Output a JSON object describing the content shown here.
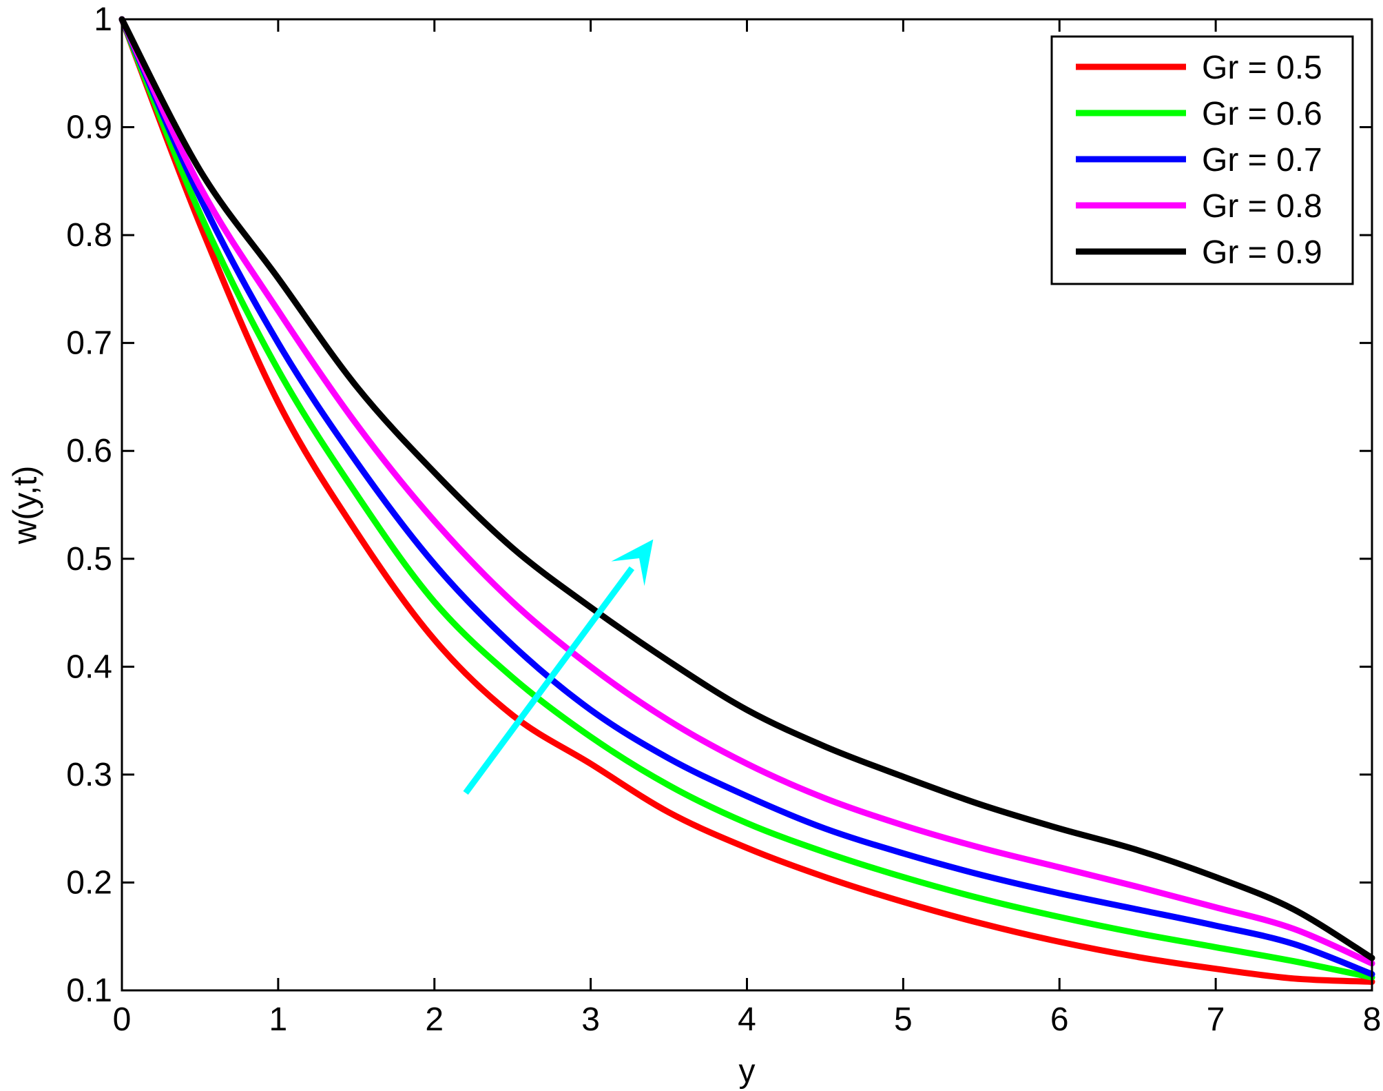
{
  "chart_data": {
    "type": "line",
    "title": "",
    "xlabel": "y",
    "ylabel": "w(y,t)",
    "xlim": [
      0,
      8
    ],
    "ylim": [
      0.1,
      1
    ],
    "xticks": [
      "0",
      "1",
      "2",
      "3",
      "4",
      "5",
      "6",
      "7",
      "8"
    ],
    "yticks": [
      "0.1",
      "0.2",
      "0.3",
      "0.4",
      "0.5",
      "0.6",
      "0.7",
      "0.8",
      "0.9",
      "1"
    ],
    "grid": false,
    "legend_position": "top-right",
    "x": [
      0,
      0.5,
      1,
      1.5,
      2,
      2.5,
      3,
      3.5,
      4,
      4.5,
      5,
      5.5,
      6,
      6.5,
      7,
      7.5,
      8
    ],
    "series": [
      {
        "name": "Gr = 0.5",
        "color": "#ff0000",
        "values": [
          1.0,
          0.81,
          0.645,
          0.525,
          0.425,
          0.355,
          0.31,
          0.265,
          0.232,
          0.205,
          0.182,
          0.162,
          0.145,
          0.131,
          0.12,
          0.111,
          0.108
        ]
      },
      {
        "name": "Gr = 0.6",
        "color": "#00ff00",
        "values": [
          1.0,
          0.82,
          0.675,
          0.56,
          0.46,
          0.39,
          0.335,
          0.29,
          0.255,
          0.228,
          0.205,
          0.185,
          0.168,
          0.153,
          0.14,
          0.127,
          0.112
        ]
      },
      {
        "name": "Gr = 0.7",
        "color": "#0000ff",
        "values": [
          1.0,
          0.835,
          0.7,
          0.59,
          0.495,
          0.42,
          0.36,
          0.315,
          0.28,
          0.25,
          0.227,
          0.207,
          0.19,
          0.175,
          0.16,
          0.143,
          0.115
        ]
      },
      {
        "name": "Gr = 0.8",
        "color": "#ff00ff",
        "values": [
          1.0,
          0.845,
          0.73,
          0.625,
          0.535,
          0.46,
          0.4,
          0.35,
          0.31,
          0.278,
          0.253,
          0.232,
          0.214,
          0.196,
          0.177,
          0.157,
          0.125
        ]
      },
      {
        "name": "Gr = 0.9",
        "color": "#000000",
        "values": [
          1.0,
          0.86,
          0.76,
          0.66,
          0.58,
          0.51,
          0.455,
          0.405,
          0.36,
          0.326,
          0.298,
          0.272,
          0.25,
          0.23,
          0.205,
          0.175,
          0.13
        ]
      }
    ],
    "annotations": [
      {
        "type": "arrow",
        "color": "#00ffff",
        "from": [
          2.2,
          0.283
        ],
        "to": [
          3.4,
          0.518
        ]
      }
    ]
  }
}
